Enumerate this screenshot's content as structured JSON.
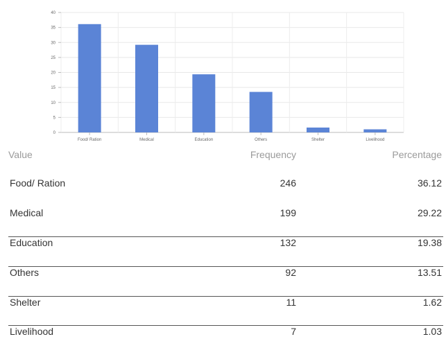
{
  "chart_data": {
    "type": "bar",
    "categories": [
      "Food/ Ration",
      "Medical",
      "Education",
      "Others",
      "Shelter",
      "Livelihood"
    ],
    "values": [
      36.12,
      29.22,
      19.38,
      13.51,
      1.62,
      1.03
    ],
    "ylim": [
      0,
      40
    ],
    "yticks": [
      "0",
      "5",
      "10",
      "15",
      "20",
      "25",
      "30",
      "35",
      "40"
    ],
    "grid": true,
    "bar_color": "#5b84d6"
  },
  "table": {
    "headers": {
      "value": "Value",
      "frequency": "Frequency",
      "percentage": "Percentage"
    },
    "rows": [
      {
        "value": "Food/ Ration",
        "frequency": "246",
        "percentage": "36.12"
      },
      {
        "value": "Medical",
        "frequency": "199",
        "percentage": "29.22"
      },
      {
        "value": "Education",
        "frequency": "132",
        "percentage": "19.38"
      },
      {
        "value": "Others",
        "frequency": "92",
        "percentage": "13.51"
      },
      {
        "value": "Shelter",
        "frequency": "11",
        "percentage": "1.62"
      },
      {
        "value": "Livelihood",
        "frequency": "7",
        "percentage": "1.03"
      }
    ]
  }
}
